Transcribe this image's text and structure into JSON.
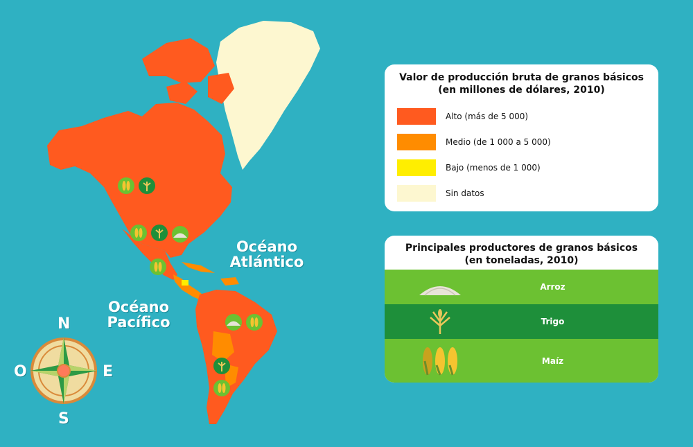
{
  "legend_value": {
    "title_line1": "Valor de producción bruta de granos básicos",
    "title_line2": "(en millones de dólares, 2010)",
    "items": [
      {
        "label": "Alto (más de 5 000)",
        "color": "#ff5a1f"
      },
      {
        "label": "Medio (de 1 000 a 5 000)",
        "color": "#ff8c00"
      },
      {
        "label": "Bajo (menos de 1 000)",
        "color": "#ffee00"
      },
      {
        "label": "Sin datos",
        "color": "#fdf7d0"
      }
    ]
  },
  "legend_producers": {
    "title_line1": "Principales productores de granos básicos",
    "title_line2": "(en toneladas, 2010)",
    "items": [
      {
        "label": "Arroz",
        "icon": "rice-pile-icon",
        "color": "#6cc132"
      },
      {
        "label": "Trigo",
        "icon": "wheat-icon",
        "color": "#1e8f3a"
      },
      {
        "label": "Maíz",
        "icon": "corn-icon",
        "color": "#6cc132"
      }
    ]
  },
  "oceans": {
    "atlantic_line1": "Océano",
    "atlantic_line2": "Atlántico",
    "pacific_line1": "Océano",
    "pacific_line2": "Pacífico"
  },
  "compass": {
    "north": "N",
    "south": "S",
    "east": "E",
    "west": "O"
  },
  "colors": {
    "ocean": "#2fb1c2",
    "high": "#ff5a1f",
    "medium": "#ff8c00",
    "low": "#ffee00",
    "no_data": "#fdf7d0"
  }
}
